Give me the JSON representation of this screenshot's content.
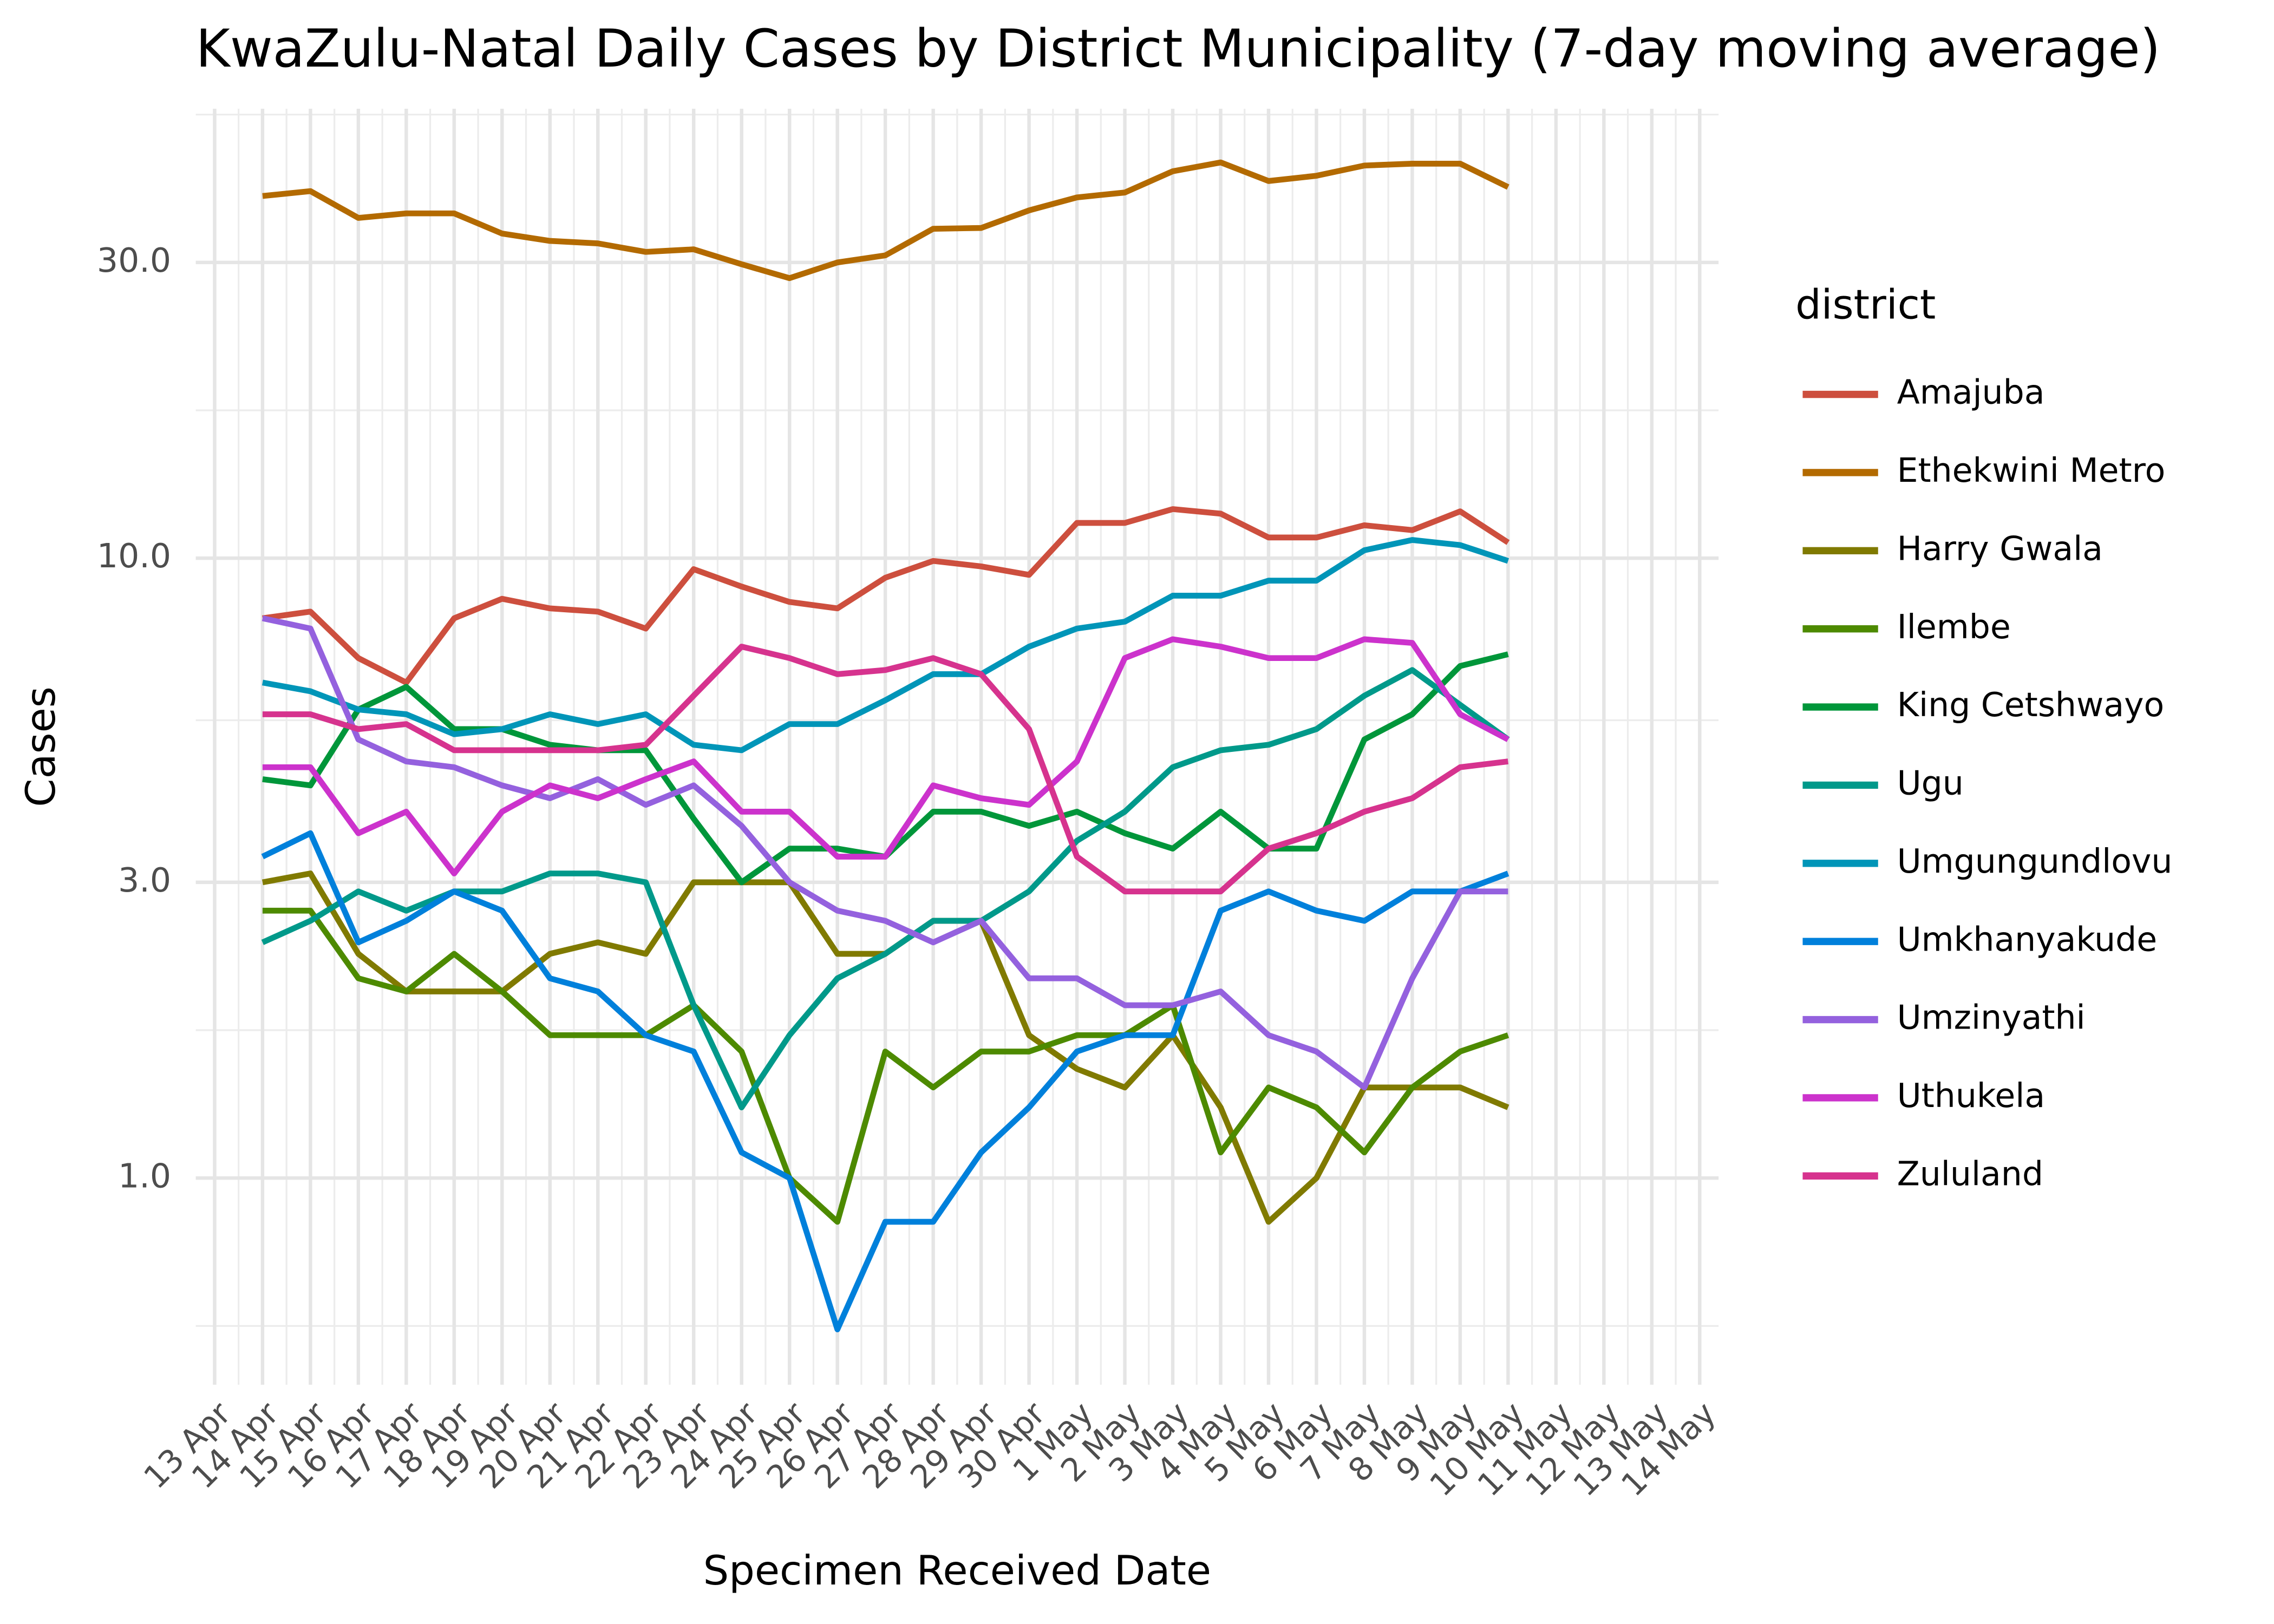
{
  "chart_data": {
    "type": "line",
    "title": "KwaZulu-Natal Daily Cases by District Municipality (7-day moving average)",
    "x_label": "Specimen Received Date",
    "y_label": "Cases",
    "legend_title": "district",
    "legend_position": "right",
    "log_scale_y": true,
    "grid": true,
    "ylim": [
      0.464,
      53.1
    ],
    "yticks": [
      {
        "value": 1,
        "label": "1.0"
      },
      {
        "value": 3,
        "label": "3.0"
      },
      {
        "value": 10,
        "label": "10.0"
      },
      {
        "value": 30,
        "label": "30.0"
      }
    ],
    "categories": [
      "13 Apr",
      "14 Apr",
      "15 Apr",
      "16 Apr",
      "17 Apr",
      "18 Apr",
      "19 Apr",
      "20 Apr",
      "21 Apr",
      "22 Apr",
      "23 Apr",
      "24 Apr",
      "25 Apr",
      "26 Apr",
      "27 Apr",
      "28 Apr",
      "29 Apr",
      "30 Apr",
      "1 May",
      "2 May",
      "3 May",
      "4 May",
      "5 May",
      "6 May",
      "7 May",
      "8 May",
      "9 May",
      "10 May",
      "11 May",
      "12 May",
      "13 May",
      "14 May"
    ],
    "series": [
      {
        "name": "Amajuba",
        "color": "#cd4f3e",
        "values": [
          null,
          8.0,
          8.2,
          6.9,
          6.3,
          8.0,
          8.6,
          8.3,
          8.2,
          7.7,
          9.6,
          9.0,
          8.5,
          8.3,
          9.3,
          9.9,
          9.7,
          9.4,
          11.4,
          11.4,
          12.0,
          11.8,
          10.8,
          10.8,
          11.3,
          11.1,
          11.9,
          10.6,
          null,
          null,
          null,
          null
        ]
      },
      {
        "name": "Ethekwini Metro",
        "color": "#b36a00",
        "values": [
          null,
          38.4,
          39.1,
          35.4,
          36.0,
          36.0,
          33.4,
          32.5,
          32.2,
          31.2,
          31.5,
          29.8,
          28.3,
          30.0,
          30.8,
          34.0,
          34.1,
          36.4,
          38.2,
          38.9,
          42.1,
          43.5,
          40.6,
          41.4,
          43.0,
          43.3,
          43.3,
          39.7,
          null,
          null,
          null,
          null
        ]
      },
      {
        "name": "Harry Gwala",
        "color": "#807a00",
        "values": [
          null,
          3.0,
          3.1,
          2.3,
          2.0,
          2.0,
          2.0,
          2.3,
          2.4,
          2.3,
          3.0,
          3.0,
          3.0,
          2.3,
          2.3,
          2.6,
          2.6,
          1.7,
          1.5,
          1.4,
          1.7,
          1.3,
          0.85,
          1.0,
          1.4,
          1.4,
          1.4,
          1.3,
          null,
          null,
          null,
          null
        ]
      },
      {
        "name": "Ilembe",
        "color": "#4d8a00",
        "values": [
          null,
          2.7,
          2.7,
          2.1,
          2.0,
          2.3,
          2.0,
          1.7,
          1.7,
          1.7,
          1.9,
          1.6,
          1.0,
          0.85,
          1.6,
          1.4,
          1.6,
          1.6,
          1.7,
          1.7,
          1.9,
          1.1,
          1.4,
          1.3,
          1.1,
          1.4,
          1.6,
          1.7,
          null,
          null,
          null,
          null
        ]
      },
      {
        "name": "King Cetshwayo",
        "color": "#00963a",
        "values": [
          null,
          4.4,
          4.3,
          5.7,
          6.2,
          5.3,
          5.3,
          5.0,
          4.9,
          4.9,
          3.8,
          3.0,
          3.4,
          3.4,
          3.3,
          3.9,
          3.9,
          3.7,
          3.9,
          3.6,
          3.4,
          3.9,
          3.4,
          3.4,
          5.1,
          5.6,
          6.7,
          7.0,
          null,
          null,
          null,
          null
        ]
      },
      {
        "name": "Ugu",
        "color": "#00998a",
        "values": [
          null,
          2.4,
          2.6,
          2.9,
          2.7,
          2.9,
          2.9,
          3.1,
          3.1,
          3.0,
          1.9,
          1.3,
          1.7,
          2.1,
          2.3,
          2.6,
          2.6,
          2.9,
          3.5,
          3.9,
          4.6,
          4.9,
          5.0,
          5.3,
          6.0,
          6.6,
          5.8,
          5.1,
          null,
          null,
          null,
          null
        ]
      },
      {
        "name": "Umgungundlovu",
        "color": "#0095b8",
        "values": [
          null,
          6.3,
          6.1,
          5.7,
          5.6,
          5.2,
          5.3,
          5.6,
          5.4,
          5.6,
          5.0,
          4.9,
          5.4,
          5.4,
          5.9,
          6.5,
          6.5,
          7.2,
          7.7,
          7.9,
          8.7,
          8.7,
          9.2,
          9.2,
          10.3,
          10.7,
          10.5,
          9.9,
          null,
          null,
          null,
          null
        ]
      },
      {
        "name": "Umkhanyakude",
        "color": "#0080db",
        "values": [
          null,
          3.3,
          3.6,
          2.4,
          2.6,
          2.9,
          2.7,
          2.1,
          2.0,
          1.7,
          1.6,
          1.1,
          1.0,
          0.57,
          0.85,
          0.85,
          1.1,
          1.3,
          1.6,
          1.7,
          1.7,
          2.7,
          2.9,
          2.7,
          2.6,
          2.9,
          2.9,
          3.1,
          null,
          null,
          null,
          null
        ]
      },
      {
        "name": "Umzinyathi",
        "color": "#9461de",
        "values": [
          null,
          8.0,
          7.7,
          5.1,
          4.7,
          4.6,
          4.3,
          4.1,
          4.4,
          4.0,
          4.3,
          3.7,
          3.0,
          2.7,
          2.6,
          2.4,
          2.6,
          2.1,
          2.1,
          1.9,
          1.9,
          2.0,
          1.7,
          1.6,
          1.4,
          2.1,
          2.9,
          2.9,
          null,
          null,
          null,
          null
        ]
      },
      {
        "name": "Uthukela",
        "color": "#cc32cc",
        "values": [
          null,
          4.6,
          4.6,
          3.6,
          3.9,
          3.1,
          3.9,
          4.3,
          4.1,
          4.4,
          4.7,
          3.9,
          3.9,
          3.3,
          3.3,
          4.3,
          4.1,
          4.0,
          4.7,
          6.9,
          7.4,
          7.2,
          6.9,
          6.9,
          7.4,
          7.3,
          5.6,
          5.1,
          null,
          null,
          null,
          null
        ]
      },
      {
        "name": "Zululand",
        "color": "#d6338e",
        "values": [
          null,
          5.6,
          5.6,
          5.3,
          5.4,
          4.9,
          4.9,
          4.9,
          4.9,
          5.0,
          6.0,
          7.2,
          6.9,
          6.5,
          6.6,
          6.9,
          6.5,
          5.3,
          3.3,
          2.9,
          2.9,
          2.9,
          3.4,
          3.6,
          3.9,
          4.1,
          4.6,
          4.7,
          null,
          null,
          null,
          null
        ]
      }
    ]
  }
}
